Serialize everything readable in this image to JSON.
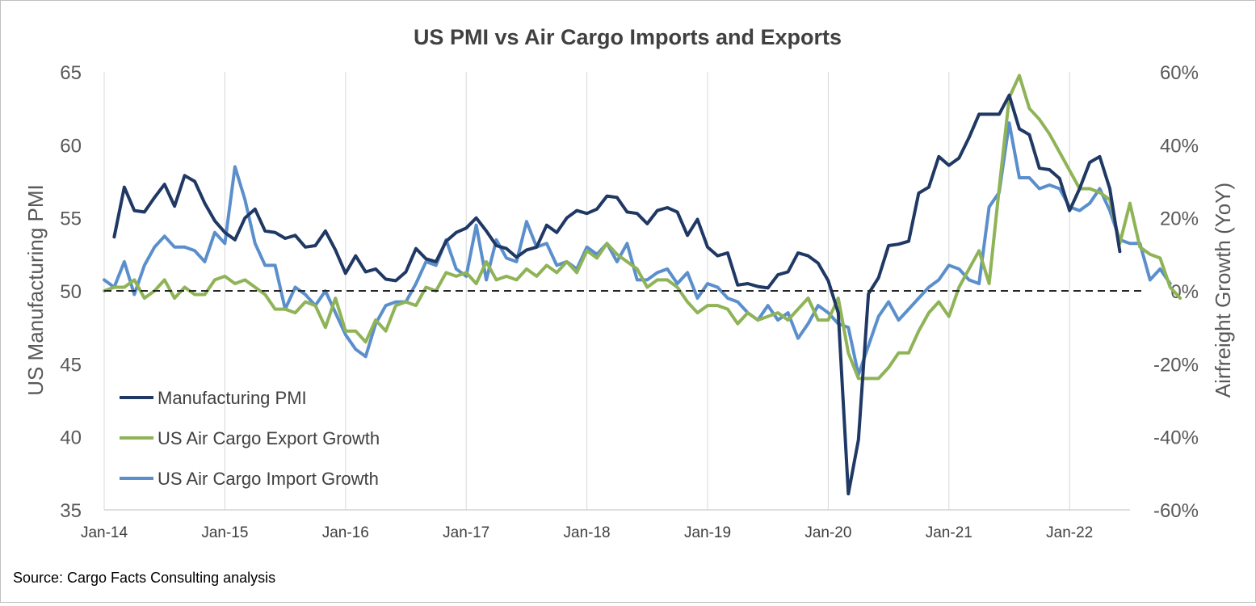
{
  "chart_data": {
    "type": "line",
    "title": "US PMI vs Air Cargo Imports and Exports",
    "source": "Source: Cargo Facts Consulting analysis",
    "y_left": {
      "label": "US Manufacturing PMI",
      "min": 35,
      "max": 65,
      "ticks": [
        "35",
        "40",
        "45",
        "50",
        "55",
        "60",
        "65"
      ]
    },
    "y_right": {
      "label": "Airfreight Growth (YoY)",
      "min": -60,
      "max": 60,
      "ticks": [
        "-60%",
        "-40%",
        "-20%",
        "0%",
        "20%",
        "40%",
        "60%"
      ]
    },
    "x_ticks": [
      "Jan-14",
      "Jan-15",
      "Jan-16",
      "Jan-17",
      "Jan-18",
      "Jan-19",
      "Jan-20",
      "Jan-21",
      "Jan-22"
    ],
    "x_start": "Jan-14",
    "grid": "vertical",
    "zero_line": "dashed",
    "legend_position": "lower-left",
    "series": [
      {
        "name": "Manufacturing PMI",
        "axis": "left",
        "color": "#1f3864",
        "start": "Feb-14",
        "values": [
          53.7,
          57.1,
          55.5,
          55.4,
          56.4,
          57.3,
          55.8,
          57.9,
          57.5,
          56.0,
          54.8,
          54.0,
          53.5,
          55.0,
          55.6,
          54.1,
          54.0,
          53.6,
          53.8,
          53.0,
          53.1,
          54.1,
          52.8,
          51.2,
          52.4,
          51.3,
          51.5,
          50.8,
          50.7,
          51.3,
          52.9,
          52.2,
          52.0,
          53.4,
          54.0,
          54.3,
          55.0,
          54.1,
          53.1,
          52.9,
          52.3,
          52.8,
          53.0,
          54.5,
          54.0,
          55.0,
          55.5,
          55.3,
          55.6,
          56.5,
          56.4,
          55.4,
          55.3,
          54.6,
          55.5,
          55.7,
          55.4,
          53.8,
          54.9,
          53.0,
          52.4,
          52.6,
          50.4,
          50.5,
          50.3,
          50.2,
          51.1,
          51.3,
          52.6,
          52.4,
          51.9,
          50.7,
          48.5,
          36.1,
          39.8,
          49.8,
          50.9,
          53.1,
          53.2,
          53.4,
          56.7,
          57.1,
          59.2,
          58.6,
          59.1,
          60.5,
          62.1,
          62.1,
          62.1,
          63.4,
          61.1,
          60.7,
          58.4,
          58.3,
          57.7,
          55.5,
          57.0,
          58.8,
          59.2,
          57.0,
          52.7
        ]
      },
      {
        "name": "US Air Cargo Export Growth",
        "axis": "right",
        "color": "#8fb357",
        "start": "Jan-14",
        "values": [
          0,
          1,
          1,
          3,
          -2,
          0,
          3,
          -2,
          1,
          -1,
          -1,
          3,
          4,
          2,
          3,
          1,
          -1,
          -5,
          -5,
          -6,
          -3,
          -4,
          -10,
          -2,
          -11,
          -11,
          -14,
          -8,
          -11,
          -4,
          -3,
          -4,
          1,
          0,
          5,
          4,
          5,
          2,
          8,
          3,
          4,
          3,
          6,
          4,
          7,
          5,
          8,
          5,
          11,
          9,
          13,
          10,
          8,
          6,
          1,
          3,
          3,
          1,
          -3,
          -6,
          -4,
          -4,
          -5,
          -9,
          -6,
          -8,
          -7,
          -6,
          -8,
          -5,
          -2,
          -8,
          -8,
          -2,
          -17,
          -24,
          -24,
          -24,
          -21,
          -17,
          -17,
          -11,
          -6,
          -3,
          -7,
          1,
          6,
          11,
          2,
          28,
          53,
          59,
          50,
          47,
          43,
          38,
          33,
          28,
          28,
          27,
          25,
          13,
          24,
          12,
          10,
          9,
          1,
          -2
        ]
      },
      {
        "name": "US Air Cargo Import Growth",
        "axis": "right",
        "color": "#5b8fcc",
        "start": "Jan-14",
        "values": [
          3,
          1,
          8,
          -1,
          7,
          12,
          15,
          12,
          12,
          11,
          8,
          16,
          13,
          34,
          25,
          13,
          7,
          7,
          -5,
          1,
          -1,
          -4,
          0,
          -6,
          -12,
          -16,
          -18,
          -9,
          -4,
          -3,
          -3,
          2,
          8,
          7,
          14,
          6,
          4,
          18,
          3,
          14,
          9,
          8,
          19,
          12,
          13,
          7,
          8,
          6,
          12,
          10,
          13,
          8,
          13,
          3,
          3,
          5,
          6,
          2,
          5,
          -2,
          2,
          1,
          -2,
          -3,
          -6,
          -8,
          -4,
          -8,
          -6,
          -13,
          -9,
          -4,
          -6,
          -9,
          -10,
          -23,
          -15,
          -7,
          -3,
          -8,
          -5,
          -2,
          1,
          3,
          7,
          6,
          3,
          2,
          23,
          27,
          46,
          31,
          31,
          28,
          29,
          28,
          23,
          22,
          24,
          28,
          22,
          14,
          13,
          13,
          3,
          6,
          2
        ]
      }
    ]
  }
}
